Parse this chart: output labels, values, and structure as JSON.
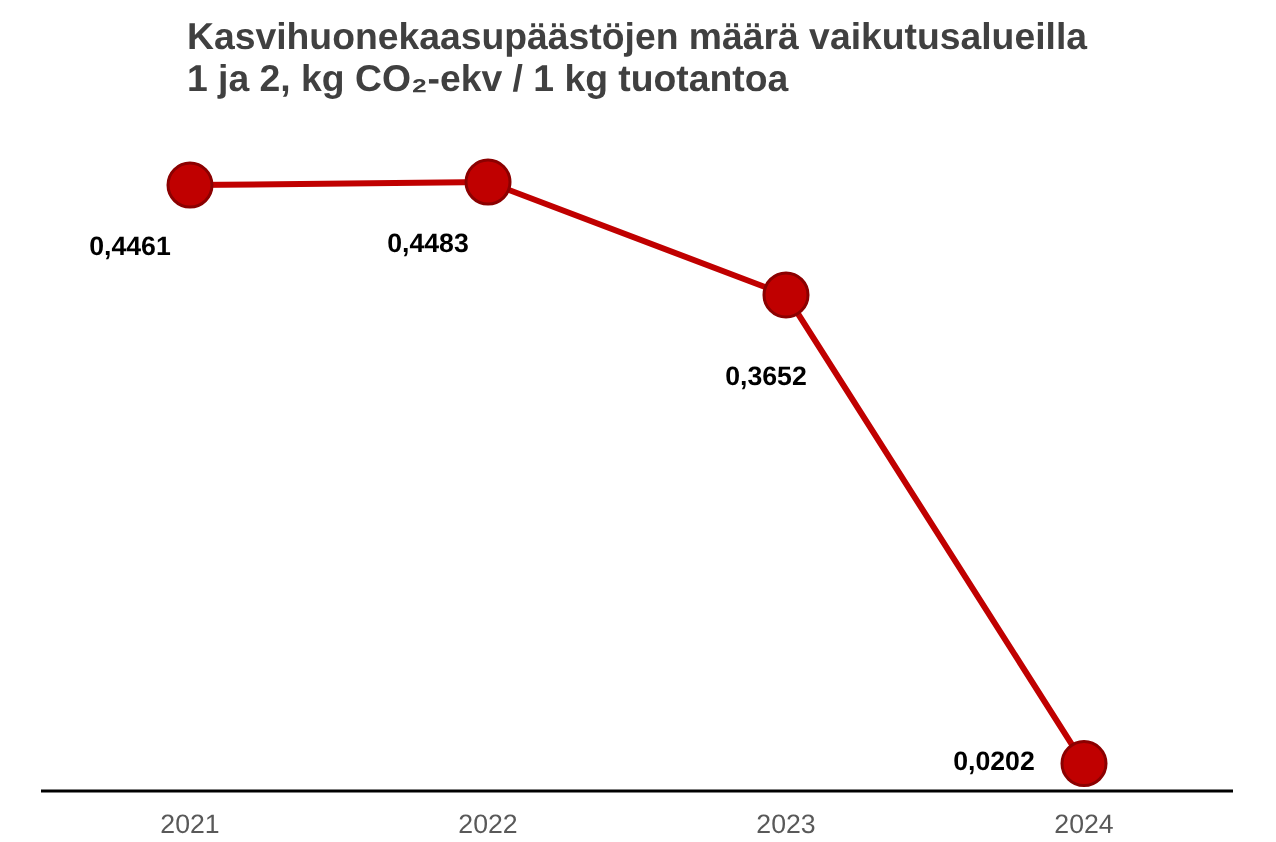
{
  "chart_data": {
    "type": "line",
    "title": "Kasvihuonekaasupäästöjen määrä vaikutusalueilla\n1 ja 2, kg CO₂-ekv / 1 kg tuotantoa",
    "categories": [
      "2021",
      "2022",
      "2023",
      "2024"
    ],
    "series": [
      {
        "color": "#c00000",
        "values": [
          0.4461,
          0.4483,
          0.3652,
          0.0202
        ],
        "value_labels": [
          "0,4461",
          "0,4483",
          "0,3652",
          "0,0202"
        ]
      }
    ],
    "tick_labels": "x",
    "grid": false,
    "marker": "circle",
    "line_style": "solid"
  }
}
